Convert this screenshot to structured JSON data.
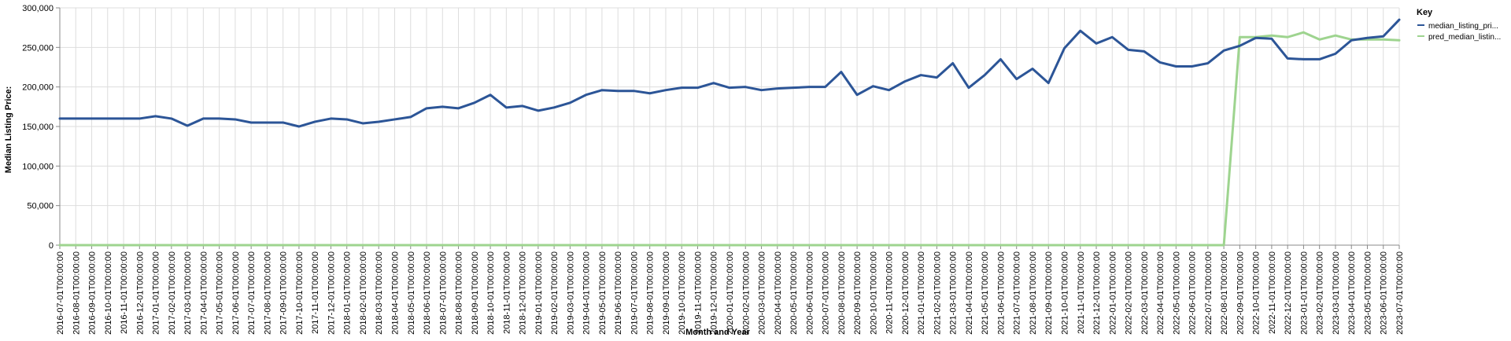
{
  "chart_data": {
    "type": "line",
    "xlabel": "Month and Year",
    "ylabel": "Median Listing Price:",
    "ylim": [
      0,
      300000
    ],
    "yticks": [
      0,
      50000,
      100000,
      150000,
      200000,
      250000,
      300000
    ],
    "ytick_labels": [
      "0",
      "50,000",
      "100,000",
      "150,000",
      "200,000",
      "250,000",
      "300,000"
    ],
    "grid": true,
    "legend": {
      "title": "Key",
      "placement": "right"
    },
    "x": [
      "2016-07-01T00:00:00",
      "2016-08-01T00:00:00",
      "2016-09-01T00:00:00",
      "2016-10-01T00:00:00",
      "2016-11-01T00:00:00",
      "2016-12-01T00:00:00",
      "2017-01-01T00:00:00",
      "2017-02-01T00:00:00",
      "2017-03-01T00:00:00",
      "2017-04-01T00:00:00",
      "2017-05-01T00:00:00",
      "2017-06-01T00:00:00",
      "2017-07-01T00:00:00",
      "2017-08-01T00:00:00",
      "2017-09-01T00:00:00",
      "2017-10-01T00:00:00",
      "2017-11-01T00:00:00",
      "2017-12-01T00:00:00",
      "2018-01-01T00:00:00",
      "2018-02-01T00:00:00",
      "2018-03-01T00:00:00",
      "2018-04-01T00:00:00",
      "2018-05-01T00:00:00",
      "2018-06-01T00:00:00",
      "2018-07-01T00:00:00",
      "2018-08-01T00:00:00",
      "2018-09-01T00:00:00",
      "2018-10-01T00:00:00",
      "2018-11-01T00:00:00",
      "2018-12-01T00:00:00",
      "2019-01-01T00:00:00",
      "2019-02-01T00:00:00",
      "2019-03-01T00:00:00",
      "2019-04-01T00:00:00",
      "2019-05-01T00:00:00",
      "2019-06-01T00:00:00",
      "2019-07-01T00:00:00",
      "2019-08-01T00:00:00",
      "2019-09-01T00:00:00",
      "2019-10-01T00:00:00",
      "2019-11-01T00:00:00",
      "2019-12-01T00:00:00",
      "2020-01-01T00:00:00",
      "2020-02-01T00:00:00",
      "2020-03-01T00:00:00",
      "2020-04-01T00:00:00",
      "2020-05-01T00:00:00",
      "2020-06-01T00:00:00",
      "2020-07-01T00:00:00",
      "2020-08-01T00:00:00",
      "2020-09-01T00:00:00",
      "2020-10-01T00:00:00",
      "2020-11-01T00:00:00",
      "2020-12-01T00:00:00",
      "2021-01-01T00:00:00",
      "2021-02-01T00:00:00",
      "2021-03-01T00:00:00",
      "2021-04-01T00:00:00",
      "2021-05-01T00:00:00",
      "2021-06-01T00:00:00",
      "2021-07-01T00:00:00",
      "2021-08-01T00:00:00",
      "2021-09-01T00:00:00",
      "2021-10-01T00:00:00",
      "2021-11-01T00:00:00",
      "2021-12-01T00:00:00",
      "2022-01-01T00:00:00",
      "2022-02-01T00:00:00",
      "2022-03-01T00:00:00",
      "2022-04-01T00:00:00",
      "2022-05-01T00:00:00",
      "2022-06-01T00:00:00",
      "2022-07-01T00:00:00",
      "2022-08-01T00:00:00",
      "2022-09-01T00:00:00",
      "2022-10-01T00:00:00",
      "2022-11-01T00:00:00",
      "2022-12-01T00:00:00",
      "2023-01-01T00:00:00",
      "2023-02-01T00:00:00",
      "2023-03-01T00:00:00",
      "2023-04-01T00:00:00",
      "2023-05-01T00:00:00",
      "2023-06-01T00:00:00",
      "2023-07-01T00:00:00"
    ],
    "series": [
      {
        "name": "median_listing_pri...",
        "color": "#2c5597",
        "values": [
          160000,
          160000,
          160000,
          160000,
          160000,
          160000,
          163000,
          160000,
          151000,
          160000,
          160000,
          159000,
          155000,
          155000,
          155000,
          150000,
          156000,
          160000,
          159000,
          154000,
          156000,
          159000,
          162000,
          173000,
          175000,
          173000,
          180000,
          190000,
          174000,
          176000,
          170000,
          174000,
          180000,
          190000,
          196000,
          195000,
          195000,
          192000,
          196000,
          199000,
          199000,
          205000,
          199000,
          200000,
          196000,
          198000,
          199000,
          200000,
          200000,
          219000,
          190000,
          201000,
          196000,
          207000,
          215000,
          212000,
          230000,
          199000,
          215000,
          235000,
          210000,
          223000,
          205000,
          249000,
          271000,
          255000,
          263000,
          247000,
          245000,
          231000,
          226000,
          226000,
          230000,
          246000,
          252000,
          262000,
          261000,
          236000,
          235000,
          235000,
          242000,
          259000,
          262000,
          264000,
          285000
        ]
      },
      {
        "name": "pred_median_listin...",
        "color": "#9ed48f",
        "values": [
          0,
          0,
          0,
          0,
          0,
          0,
          0,
          0,
          0,
          0,
          0,
          0,
          0,
          0,
          0,
          0,
          0,
          0,
          0,
          0,
          0,
          0,
          0,
          0,
          0,
          0,
          0,
          0,
          0,
          0,
          0,
          0,
          0,
          0,
          0,
          0,
          0,
          0,
          0,
          0,
          0,
          0,
          0,
          0,
          0,
          0,
          0,
          0,
          0,
          0,
          0,
          0,
          0,
          0,
          0,
          0,
          0,
          0,
          0,
          0,
          0,
          0,
          0,
          0,
          0,
          0,
          0,
          0,
          0,
          0,
          0,
          0,
          0,
          0,
          263000,
          263000,
          265000,
          263000,
          269000,
          260000,
          265000,
          260000,
          260000,
          260000,
          259000
        ]
      }
    ]
  }
}
